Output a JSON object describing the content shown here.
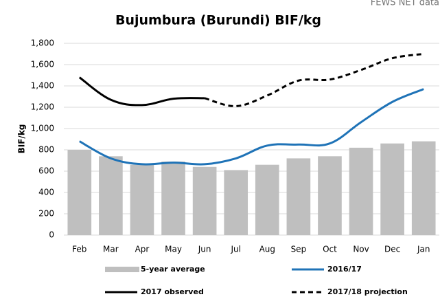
{
  "chart_data": {
    "type": "bar_line",
    "title": "Bujumbura (Burundi) BIF/kg",
    "source": "FEWS NET data",
    "y_label": "BIF/kg",
    "categories": [
      "Feb",
      "Mar",
      "Apr",
      "May",
      "Jun",
      "Jul",
      "Aug",
      "Sep",
      "Oct",
      "Nov",
      "Dec",
      "Jan"
    ],
    "series": [
      {
        "name": "5-year average",
        "type": "bar",
        "color": "#bfbfbf",
        "values": [
          800,
          740,
          660,
          690,
          640,
          610,
          660,
          720,
          740,
          820,
          860,
          880
        ]
      },
      {
        "name": "2016/17",
        "type": "line",
        "dash": false,
        "color": "#1f73b7",
        "values": [
          880,
          720,
          665,
          680,
          665,
          720,
          840,
          850,
          860,
          1060,
          1250,
          1370
        ]
      },
      {
        "name": "2017 observed",
        "type": "line",
        "dash": false,
        "color": "#000000",
        "values": [
          1480,
          1270,
          1220,
          1280,
          1285,
          null,
          null,
          null,
          null,
          null,
          null,
          null
        ]
      },
      {
        "name": "2017/18 projection",
        "type": "line",
        "dash": true,
        "color": "#000000",
        "values": [
          null,
          null,
          null,
          null,
          1285,
          1210,
          1310,
          1450,
          1460,
          1550,
          1660,
          1700
        ]
      }
    ],
    "ylim": [
      0,
      1800
    ],
    "yticks": [
      0,
      200,
      400,
      600,
      800,
      {
        "value": 1000,
        "label": "1,000"
      },
      {
        "value": 1200,
        "label": "1,200"
      },
      {
        "value": 1400,
        "label": "1,400"
      },
      {
        "value": 1600,
        "label": "1,600"
      },
      {
        "value": 1800,
        "label": "1,800"
      }
    ],
    "grid": true
  }
}
